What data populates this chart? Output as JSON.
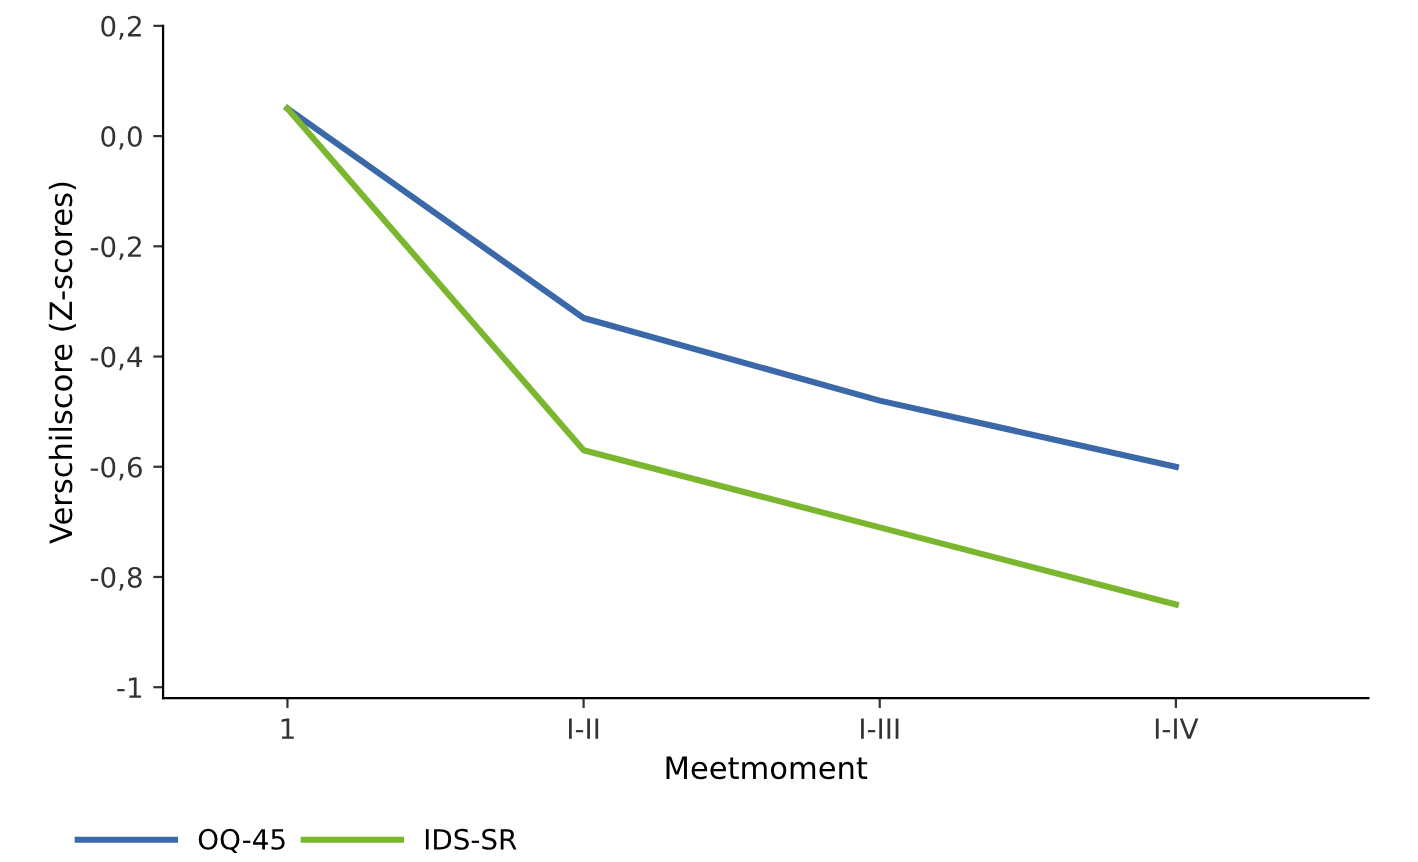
{
  "chart_data": {
    "type": "line",
    "xlabel": "Meetmoment",
    "ylabel": "Verschilscore (Z-scores)",
    "categories": [
      "1",
      "I-II",
      "I-III",
      "I-IV"
    ],
    "series": [
      {
        "name": "OQ-45",
        "color": "#3a68a8",
        "values": [
          0.05,
          -0.33,
          -0.48,
          -0.6
        ]
      },
      {
        "name": "IDS-SR",
        "color": "#7ab72e",
        "values": [
          0.05,
          -0.57,
          -0.71,
          -0.85
        ]
      }
    ],
    "ylim": [
      -1.02,
      0.2
    ],
    "yticks": [
      {
        "value": 0.2,
        "label": "0,2"
      },
      {
        "value": 0.0,
        "label": "0,0"
      },
      {
        "value": -0.2,
        "label": "-0,2"
      },
      {
        "value": -0.4,
        "label": "-0,4"
      },
      {
        "value": -0.6,
        "label": "-0,6"
      },
      {
        "value": -0.8,
        "label": "-0,8"
      },
      {
        "value": -1,
        "label": "-1"
      }
    ],
    "grid": false,
    "legend": "bottom left",
    "marker": "none",
    "line_style": "solid"
  }
}
